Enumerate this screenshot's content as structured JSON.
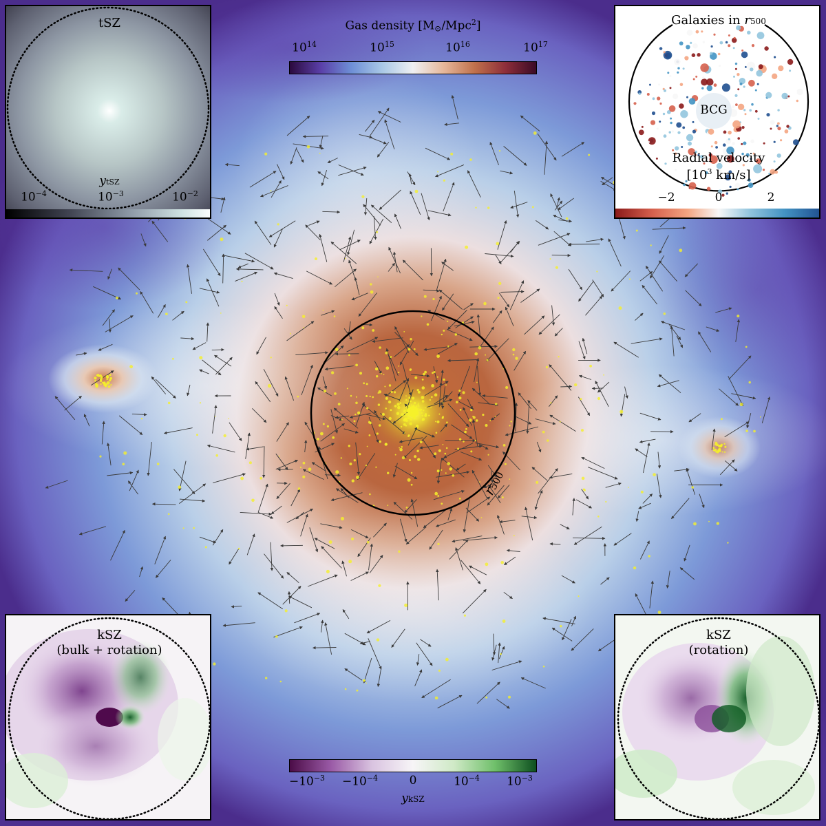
{
  "main": {
    "r500_label": "r",
    "r500_sub": "500",
    "density_cbar": {
      "title": "Gas density [M",
      "title_sun": "⊙",
      "title_tail": "/Mpc",
      "title_sup": "2",
      "title_end": "]",
      "ticks": [
        "10",
        "10",
        "10",
        "10"
      ],
      "tick_exps": [
        "14",
        "15",
        "16",
        "17"
      ],
      "colors": [
        "#2b0a3d",
        "#5a3fa8",
        "#6e8fd6",
        "#a9c8e6",
        "#eef0f2",
        "#e6b79a",
        "#c0714c",
        "#8e2e3a",
        "#3a0a26"
      ]
    },
    "ksz_cbar": {
      "ticks": [
        "−10",
        "−10",
        "0",
        "10",
        "10"
      ],
      "tick_exps": [
        "−3",
        "−4",
        "",
        "−4",
        "−3"
      ],
      "label": "y",
      "label_sub": "kSZ",
      "colors": [
        "#4b0c47",
        "#9a5aa6",
        "#d9c3e0",
        "#f7f5f7",
        "#cfe9c6",
        "#6fbf6a",
        "#0d4f1f"
      ]
    }
  },
  "tsz_inset": {
    "title": "tSZ",
    "cbar_label": "y",
    "cbar_label_sub": "tSZ",
    "ticks": [
      "10",
      "10",
      "10"
    ],
    "tick_exps": [
      "−4",
      "−3",
      "−2"
    ]
  },
  "galaxies_inset": {
    "title": "Galaxies in ",
    "title_r": "r",
    "title_sub": "500",
    "bcg_label": "BCG",
    "velocity_label": "Radial velocity",
    "velocity_unit": "[10",
    "velocity_unit_sup": "3",
    "velocity_unit_tail": " km/s]",
    "ticks": [
      "−2",
      "0",
      "2"
    ],
    "colors": [
      "#8b1a1a",
      "#d6604d",
      "#f4a582",
      "#f7f7f7",
      "#92c5de",
      "#4393c3",
      "#1f4f8f"
    ]
  },
  "ksz_bulk_inset": {
    "title_line1": "kSZ",
    "title_line2": "(bulk + rotation)"
  },
  "ksz_rot_inset": {
    "title_line1": "kSZ",
    "title_line2": "(rotation)"
  }
}
